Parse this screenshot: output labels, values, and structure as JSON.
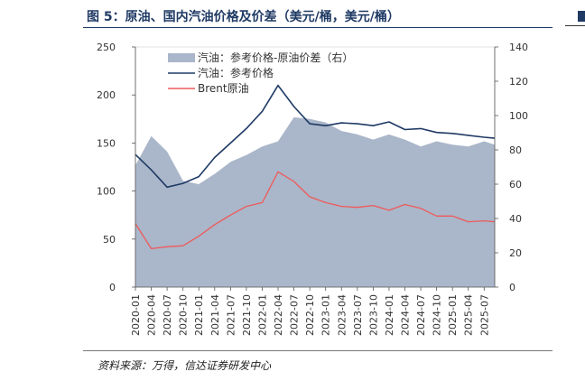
{
  "figure": {
    "title": "图 5：原油、国内汽油价格及价差（美元/桶，美元/桶）",
    "source": "资料来源：万得，信达证券研发中心"
  },
  "chart_data": {
    "type": "area+line",
    "title": "原油、国内汽油价格及价差（美元/桶，美元/桶）",
    "left_axis": {
      "min": 0,
      "max": 250,
      "ticks": [
        "0",
        "50",
        "100",
        "150",
        "200",
        "250"
      ]
    },
    "right_axis": {
      "min": 0,
      "max": 140,
      "ticks": [
        "0",
        "20",
        "40",
        "60",
        "80",
        "100",
        "120",
        "140"
      ]
    },
    "x_ticks": [
      "2020-01",
      "2020-04",
      "2020-07",
      "2020-10",
      "2021-01",
      "2021-04",
      "2021-07",
      "2021-10",
      "2022-01",
      "2022-04",
      "2022-07",
      "2022-10",
      "2023-01",
      "2023-04",
      "2023-07",
      "2023-10",
      "2024-01",
      "2024-04",
      "2024-07",
      "2024-10",
      "2025-01",
      "2025-04",
      "2025-07"
    ],
    "legend": [
      {
        "label": "汽油：参考价格-原油价差（右）",
        "kind": "area",
        "color": "#aab6c9"
      },
      {
        "label": "汽油：参考价格",
        "kind": "line",
        "color": "#1f3a64"
      },
      {
        "label": "Brent原油",
        "kind": "line",
        "color": "#ee5a5a"
      }
    ],
    "legend_position": "top-left",
    "x_months": [
      0,
      3,
      6,
      9,
      12,
      15,
      18,
      21,
      24,
      27,
      30,
      33,
      36,
      39,
      42,
      45,
      48,
      51,
      54,
      57,
      60,
      63,
      66,
      68
    ],
    "series": [
      {
        "name": "汽油：参考价格-原油价差（右）",
        "axis": "right",
        "color": "#aab6c9",
        "values": [
          71,
          88,
          79,
          62,
          60,
          66,
          73,
          77,
          82,
          85,
          99,
          98,
          96,
          91,
          89,
          86,
          89,
          86,
          82,
          85,
          83,
          82,
          85,
          83
        ]
      },
      {
        "name": "汽油：参考价格",
        "axis": "left",
        "color": "#1f3a64",
        "values": [
          138,
          122,
          104,
          108,
          115,
          135,
          150,
          165,
          183,
          210,
          188,
          170,
          168,
          171,
          170,
          168,
          172,
          164,
          165,
          161,
          160,
          158,
          156,
          155
        ]
      },
      {
        "name": "Brent原油",
        "axis": "left",
        "color": "#ee5a5a",
        "values": [
          66,
          40,
          42,
          43,
          53,
          65,
          75,
          84,
          88,
          120,
          110,
          94,
          88,
          84,
          83,
          85,
          80,
          86,
          82,
          74,
          74,
          68,
          69,
          68
        ]
      }
    ]
  }
}
